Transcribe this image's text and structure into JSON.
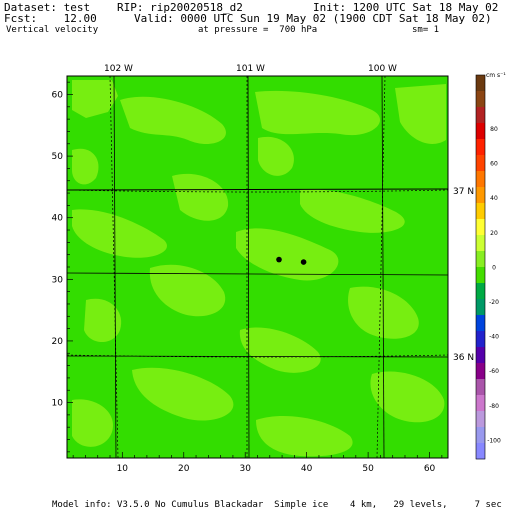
{
  "header": {
    "dataset": "Dataset: test",
    "rip": "RIP: rip20020518_d2",
    "init": "Init: 1200 UTC Sat 18 May 02",
    "fcst": "Fcst:    12.00",
    "valid": "Valid: 0000 UTC Sun 19 May 02 (1900 CDT Sat 18 May 02)",
    "field": "Vertical velocity",
    "pressure": "at pressure =  700 hPa",
    "sm": "sm= 1"
  },
  "footer": {
    "model_info": "Model info: V3.5.0 No Cumulus Blackadar  Simple ice    4 km,   29 levels,     7 sec"
  },
  "map": {
    "longitude_labels": [
      "102 W",
      "101 W",
      "100 W"
    ],
    "latitude_labels": [
      "37 N",
      "36 N"
    ],
    "x_ticks": [
      "10",
      "20",
      "30",
      "40",
      "50",
      "60"
    ],
    "y_ticks": [
      "10",
      "20",
      "30",
      "40",
      "50",
      "60"
    ],
    "x_range": [
      1,
      63
    ],
    "y_range": [
      1,
      63
    ],
    "background_color": "#33dd00",
    "patch_color": "#77ee11",
    "stations": [
      {
        "x": 35.5,
        "y": 33.2
      },
      {
        "x": 39.5,
        "y": 32.8
      }
    ]
  },
  "colorbar": {
    "unit": "cm s⁻¹",
    "labels": [
      "80",
      "60",
      "40",
      "20",
      "0",
      "-20",
      "-40",
      "-60",
      "-80",
      "-100"
    ],
    "colors": [
      "#6b3a10",
      "#8b4513",
      "#b22222",
      "#dd0000",
      "#ff2200",
      "#ff4400",
      "#ff7700",
      "#ff9900",
      "#ffcc00",
      "#ffff33",
      "#ccff33",
      "#88ee22",
      "#44dd00",
      "#00aa44",
      "#009966",
      "#0044dd",
      "#2222cc",
      "#5500aa",
      "#880088",
      "#aa55aa",
      "#cc77cc",
      "#bb99dd",
      "#9999ee",
      "#8888ff"
    ]
  }
}
